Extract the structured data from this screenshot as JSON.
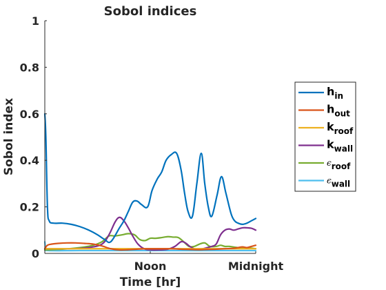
{
  "chart_data": {
    "type": "line",
    "title": "Sobol indices",
    "xlabel": "Time [hr]",
    "ylabel": "Sobol index",
    "xlim": [
      0,
      24
    ],
    "ylim": [
      0,
      1
    ],
    "x_ticks": [
      {
        "value": 12,
        "label": "Noon"
      },
      {
        "value": 24,
        "label": "Midnight"
      }
    ],
    "y_ticks": [
      {
        "value": 0,
        "label": "0"
      },
      {
        "value": 0.2,
        "label": "0.2"
      },
      {
        "value": 0.4,
        "label": "0.4"
      },
      {
        "value": 0.6,
        "label": "0.6"
      },
      {
        "value": 0.8,
        "label": "0.8"
      },
      {
        "value": 1,
        "label": "1"
      }
    ],
    "grid": false,
    "legend_position": "right",
    "series": [
      {
        "name": "h_in",
        "label_main": "h",
        "label_sub": "in",
        "greek": false,
        "color": "#0072BD",
        "x": [
          0,
          0.12,
          0.3,
          0.5,
          1,
          2,
          3,
          4,
          5,
          6,
          6.8,
          7.5,
          8.5,
          9,
          9.5,
          10,
          10.5,
          11,
          11.7,
          12.2,
          12.8,
          13.3,
          13.8,
          14.4,
          15,
          15.5,
          15.9,
          16.3,
          16.8,
          17.3,
          17.8,
          18.2,
          18.6,
          19,
          19.6,
          20.1,
          20.6,
          21.2,
          21.6,
          22,
          22.5,
          23,
          23.5,
          24
        ],
        "y": [
          0.6,
          0.5,
          0.2,
          0.14,
          0.13,
          0.13,
          0.125,
          0.115,
          0.1,
          0.08,
          0.06,
          0.05,
          0.11,
          0.14,
          0.18,
          0.22,
          0.225,
          0.21,
          0.2,
          0.27,
          0.32,
          0.35,
          0.4,
          0.425,
          0.43,
          0.36,
          0.26,
          0.18,
          0.16,
          0.3,
          0.43,
          0.3,
          0.2,
          0.16,
          0.25,
          0.33,
          0.26,
          0.17,
          0.14,
          0.13,
          0.125,
          0.13,
          0.14,
          0.15
        ]
      },
      {
        "name": "h_out",
        "label_main": "h",
        "label_sub": "out",
        "greek": false,
        "color": "#D95319",
        "x": [
          0,
          0.3,
          0.8,
          1.5,
          2.5,
          3.5,
          4.5,
          5.5,
          6.5,
          7.5,
          8.5,
          9.5,
          10.5,
          11.5,
          12.5,
          13.5,
          14.5,
          15.5,
          16.5,
          17.5,
          18.5,
          19.5,
          20.5,
          21.5,
          22,
          22.5,
          23,
          23.5,
          24
        ],
        "y": [
          0.02,
          0.035,
          0.04,
          0.043,
          0.045,
          0.045,
          0.043,
          0.04,
          0.032,
          0.02,
          0.015,
          0.016,
          0.018,
          0.02,
          0.02,
          0.02,
          0.02,
          0.018,
          0.017,
          0.016,
          0.017,
          0.018,
          0.02,
          0.022,
          0.025,
          0.028,
          0.025,
          0.03,
          0.035
        ]
      },
      {
        "name": "k_roof",
        "label_main": "k",
        "label_sub": "roof",
        "greek": false,
        "color": "#EDB120",
        "x": [
          0,
          4,
          8,
          12,
          16,
          20,
          24
        ],
        "y": [
          0.02,
          0.02,
          0.02,
          0.02,
          0.02,
          0.02,
          0.02
        ]
      },
      {
        "name": "k_wall",
        "label_main": "k",
        "label_sub": "wall",
        "greek": false,
        "color": "#7E2F8E",
        "x": [
          0,
          3,
          5,
          6.5,
          7.3,
          8,
          8.5,
          9,
          9.5,
          10,
          10.6,
          11.3,
          12,
          13,
          14,
          14.8,
          15.5,
          16,
          16.5,
          17,
          17.5,
          18,
          18.5,
          19,
          19.5,
          20,
          20.5,
          21,
          21.5,
          22,
          22.5,
          23,
          23.5,
          24
        ],
        "y": [
          0.02,
          0.02,
          0.025,
          0.04,
          0.08,
          0.135,
          0.155,
          0.14,
          0.11,
          0.075,
          0.04,
          0.02,
          0.015,
          0.015,
          0.018,
          0.03,
          0.05,
          0.045,
          0.03,
          0.02,
          0.018,
          0.02,
          0.025,
          0.03,
          0.04,
          0.08,
          0.1,
          0.105,
          0.1,
          0.105,
          0.11,
          0.11,
          0.108,
          0.1
        ]
      },
      {
        "name": "eps_roof",
        "label_main": "ϵ",
        "label_sub": "roof",
        "greek": true,
        "color": "#77AC30",
        "x": [
          0,
          2,
          4,
          5.5,
          6.5,
          7.3,
          8,
          8.8,
          9.5,
          10.2,
          10.8,
          11.4,
          12,
          12.6,
          13.3,
          14,
          14.6,
          15.2,
          15.8,
          16.4,
          17,
          17.6,
          18.2,
          18.8,
          19.5,
          20,
          20.5,
          21,
          22,
          23,
          24
        ],
        "y": [
          0.015,
          0.018,
          0.025,
          0.035,
          0.05,
          0.075,
          0.075,
          0.08,
          0.085,
          0.08,
          0.06,
          0.055,
          0.065,
          0.065,
          0.068,
          0.072,
          0.07,
          0.068,
          0.05,
          0.03,
          0.03,
          0.04,
          0.045,
          0.03,
          0.03,
          0.035,
          0.03,
          0.03,
          0.025,
          0.025,
          0.02
        ]
      },
      {
        "name": "eps_wall",
        "label_main": "ϵ",
        "label_sub": "wall",
        "greek": true,
        "color": "#4DBEEE",
        "x": [
          0,
          0.12,
          0.4,
          4,
          8,
          12,
          16,
          20,
          24
        ],
        "y": [
          0.05,
          0.02,
          0.012,
          0.012,
          0.012,
          0.012,
          0.012,
          0.012,
          0.012
        ]
      }
    ]
  }
}
